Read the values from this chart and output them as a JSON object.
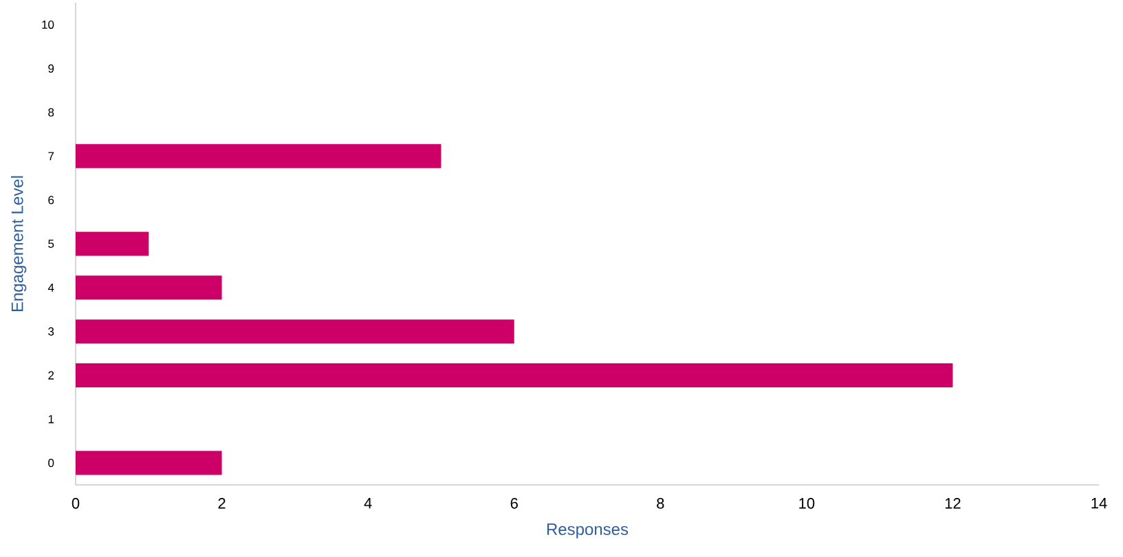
{
  "chart_data": {
    "type": "bar",
    "orientation": "horizontal",
    "xlabel": "Responses",
    "ylabel": "Engagement Level",
    "categories": [
      "10",
      "9",
      "8",
      "7",
      "6",
      "5",
      "4",
      "3",
      "2",
      "1",
      "0"
    ],
    "values": [
      0,
      0,
      0,
      5,
      0,
      1,
      2,
      6,
      12,
      0,
      2
    ],
    "color": "#cc0066",
    "xlim": [
      0,
      14
    ],
    "xticks": [
      0,
      2,
      4,
      6,
      8,
      10,
      12,
      14
    ],
    "grid": false
  }
}
